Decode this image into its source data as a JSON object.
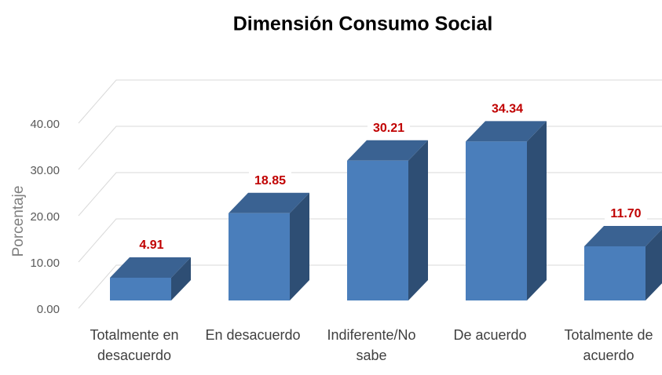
{
  "chart_data": {
    "type": "bar3d",
    "title": "Dimensión Consumo Social",
    "y_label": "Porcentaje",
    "categories": [
      "Totalmente en desacuerdo",
      "En desacuerdo",
      "Indiferente/No sabe",
      "De acuerdo",
      "Totalmente de acuerdo"
    ],
    "values": [
      4.91,
      18.85,
      30.21,
      34.34,
      11.7
    ],
    "value_labels": [
      "4.91",
      "18.85",
      "30.21",
      "34.34",
      "11.70"
    ],
    "color": "#4a7ebb",
    "label_color": "#c00000",
    "ylim": [
      0,
      40
    ],
    "yticks": [
      {
        "value": 0,
        "label": "0.00"
      },
      {
        "value": 10,
        "label": "10.00"
      },
      {
        "value": 20,
        "label": "20.00"
      },
      {
        "value": 30,
        "label": "30.00"
      },
      {
        "value": 40,
        "label": "40.00"
      }
    ],
    "grid": true
  }
}
